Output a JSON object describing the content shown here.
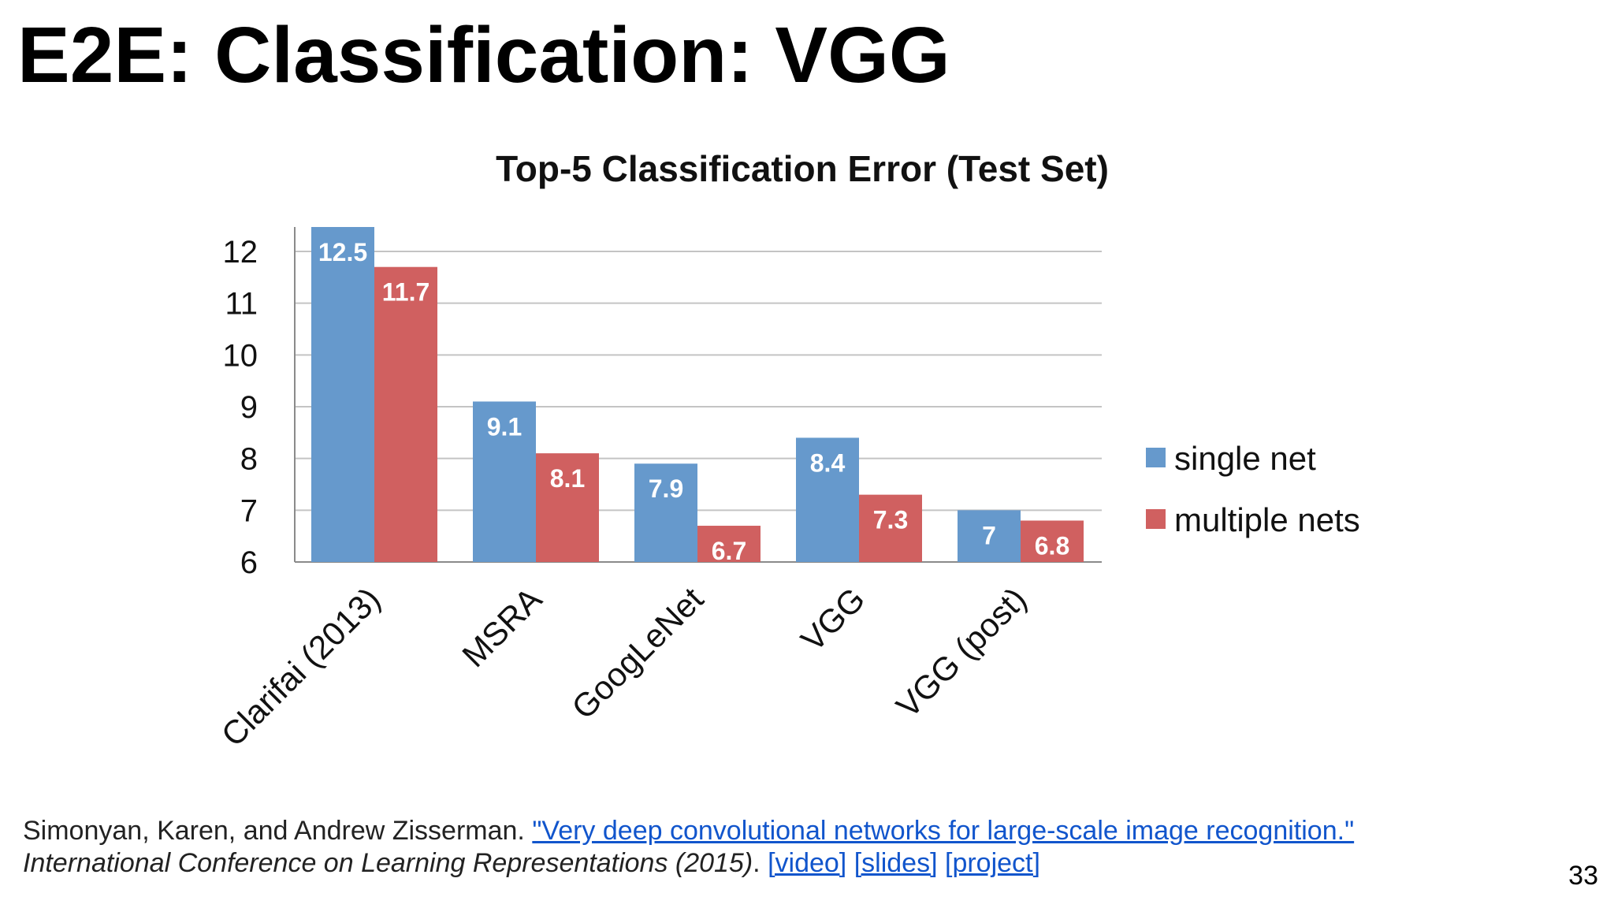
{
  "slide": {
    "title": "E2E: Classification: VGG",
    "page_number": "33"
  },
  "citation": {
    "authors": "Simonyan, Karen, and Andrew Zisserman.",
    "paper_link": "\"Very deep convolutional networks for large-scale image recognition.\"",
    "venue": "International Conference on Learning Representations (2015)",
    "links": [
      "[video]",
      "[slides]",
      "[project]"
    ]
  },
  "chart_data": {
    "type": "bar",
    "title": "Top-5 Classification Error (Test Set)",
    "categories": [
      "Clarifai (2013)",
      "MSRA",
      "GoogLeNet",
      "VGG",
      "VGG (post)"
    ],
    "series": [
      {
        "name": "single net",
        "values": [
          12.5,
          9.1,
          7.9,
          8.4,
          7
        ],
        "color": "#6699cc"
      },
      {
        "name": "multiple nets",
        "values": [
          11.7,
          8.1,
          6.7,
          7.3,
          6.8
        ],
        "color": "#d06060"
      }
    ],
    "ylim": [
      6,
      12
    ],
    "yticks": [
      6,
      7,
      8,
      9,
      10,
      11,
      12
    ],
    "grid": true,
    "legend": "right"
  }
}
